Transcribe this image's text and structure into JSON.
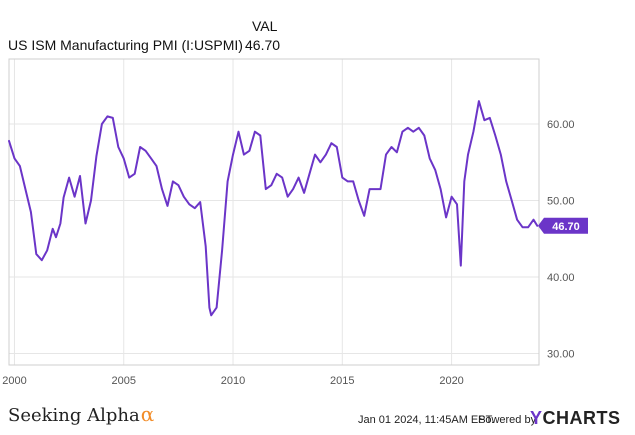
{
  "legend": {
    "header": "VAL",
    "series_name": "US ISM Manufacturing PMI (I:USPMI)",
    "series_value": "46.70"
  },
  "footer": {
    "brand_text": "Seeking Alpha",
    "brand_mark": "α",
    "timestamp": "Jan 01 2024, 11:45AM EST.",
    "powered_by": "Powered by",
    "logo_mark": "Y",
    "logo_text": "CHARTS"
  },
  "colors": {
    "line": "#6b35c8",
    "grid": "#e6e6e6",
    "frame": "#cfcfcf",
    "tick_text": "#555555",
    "brand_accent": "#f28c28"
  },
  "chart_data": {
    "type": "line",
    "title": "",
    "xlabel": "",
    "ylabel": "",
    "xlim": [
      1999.75,
      2024.0
    ],
    "ylim": [
      28.5,
      68.5
    ],
    "xticks": [
      2000,
      2005,
      2010,
      2015,
      2020
    ],
    "xtick_labels": [
      "2000",
      "2005",
      "2010",
      "2015",
      "2020"
    ],
    "yticks": [
      30,
      40,
      50,
      60
    ],
    "ytick_labels": [
      "30.00",
      "40.00",
      "50.00",
      "60.00"
    ],
    "grid": true,
    "y_axis_side": "right",
    "last_value_label": "46.70",
    "series": [
      {
        "name": "US ISM Manufacturing PMI (I:USPMI)",
        "x": [
          1999.75,
          2000.0,
          2000.25,
          2000.5,
          2000.75,
          2001.0,
          2001.25,
          2001.5,
          2001.75,
          2001.9,
          2002.1,
          2002.25,
          2002.5,
          2002.75,
          2003.0,
          2003.25,
          2003.5,
          2003.75,
          2004.0,
          2004.25,
          2004.5,
          2004.75,
          2005.0,
          2005.25,
          2005.5,
          2005.75,
          2006.0,
          2006.25,
          2006.5,
          2006.75,
          2007.0,
          2007.25,
          2007.5,
          2007.75,
          2008.0,
          2008.25,
          2008.5,
          2008.75,
          2008.92,
          2009.0,
          2009.25,
          2009.5,
          2009.75,
          2010.0,
          2010.25,
          2010.5,
          2010.75,
          2011.0,
          2011.25,
          2011.5,
          2011.75,
          2012.0,
          2012.25,
          2012.5,
          2012.75,
          2013.0,
          2013.25,
          2013.5,
          2013.75,
          2014.0,
          2014.25,
          2014.5,
          2014.75,
          2015.0,
          2015.25,
          2015.5,
          2015.75,
          2016.0,
          2016.25,
          2016.5,
          2016.75,
          2017.0,
          2017.25,
          2017.5,
          2017.75,
          2018.0,
          2018.25,
          2018.5,
          2018.75,
          2019.0,
          2019.25,
          2019.5,
          2019.75,
          2020.0,
          2020.25,
          2020.42,
          2020.58,
          2020.75,
          2021.0,
          2021.25,
          2021.5,
          2021.75,
          2022.0,
          2022.25,
          2022.5,
          2022.75,
          2023.0,
          2023.25,
          2023.5,
          2023.75,
          2023.92
        ],
        "y": [
          57.8,
          55.5,
          54.5,
          51.5,
          48.5,
          43.0,
          42.2,
          43.5,
          46.3,
          45.2,
          47.0,
          50.4,
          53.0,
          50.5,
          53.2,
          47.0,
          50.0,
          55.8,
          60.0,
          61.0,
          60.8,
          57.0,
          55.5,
          53.0,
          53.5,
          57.0,
          56.5,
          55.5,
          54.5,
          51.5,
          49.3,
          52.5,
          52.0,
          50.5,
          49.5,
          49.0,
          49.8,
          44.0,
          36.0,
          35.0,
          36.0,
          43.5,
          52.5,
          56.0,
          59.0,
          56.0,
          56.5,
          59.0,
          58.5,
          51.5,
          52.0,
          53.5,
          53.0,
          50.5,
          51.5,
          53.0,
          51.0,
          53.5,
          56.0,
          55.0,
          56.0,
          57.5,
          57.0,
          53.0,
          52.5,
          52.5,
          50.0,
          48.0,
          51.5,
          51.5,
          51.5,
          56.0,
          57.0,
          56.3,
          59.0,
          59.5,
          59.0,
          59.5,
          58.5,
          55.5,
          54.0,
          51.5,
          47.8,
          50.5,
          49.5,
          41.5,
          52.5,
          56.0,
          59.0,
          63.0,
          60.5,
          60.8,
          58.5,
          56.0,
          52.5,
          50.0,
          47.5,
          46.5,
          46.5,
          47.5,
          46.7
        ]
      }
    ]
  }
}
